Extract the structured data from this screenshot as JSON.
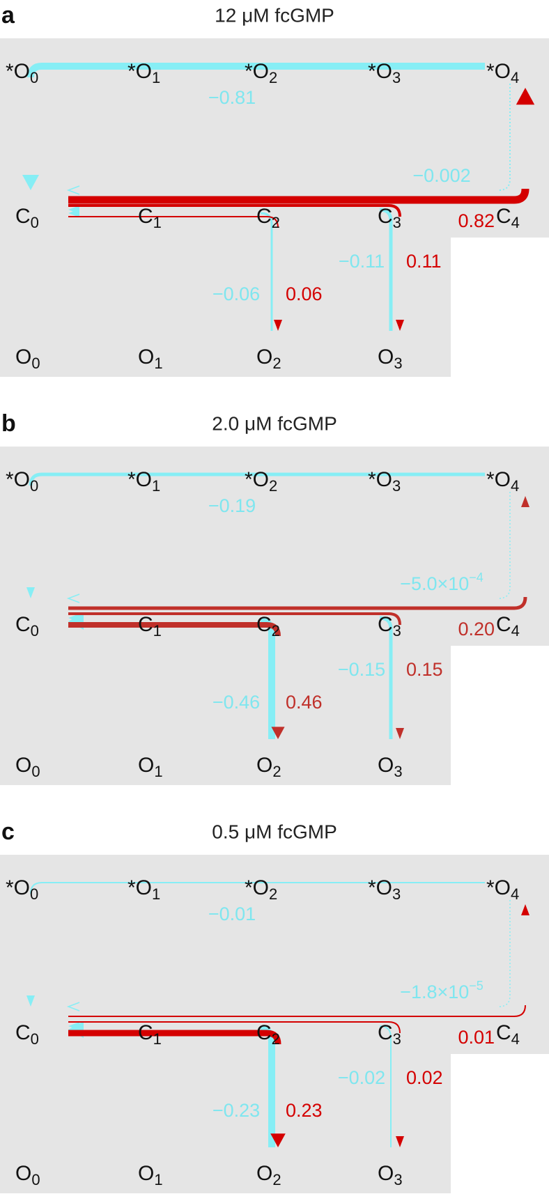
{
  "panels": [
    {
      "label": "a",
      "title": "12 μM fcGMP",
      "nodes": [
        {
          "main": "*O",
          "sub": "0"
        },
        {
          "main": "*O",
          "sub": "1"
        },
        {
          "main": "*O",
          "sub": "2"
        },
        {
          "main": "*O",
          "sub": "3"
        },
        {
          "main": "*O",
          "sub": "4"
        },
        {
          "main": "C",
          "sub": "0"
        },
        {
          "main": "C",
          "sub": "1"
        },
        {
          "main": "C",
          "sub": "2"
        },
        {
          "main": "C",
          "sub": "3"
        },
        {
          "main": "C",
          "sub": "4"
        },
        {
          "main": "O",
          "sub": "0"
        },
        {
          "main": "O",
          "sub": "1"
        },
        {
          "main": "O",
          "sub": "2"
        },
        {
          "main": "O",
          "sub": "3"
        }
      ],
      "fluxes": {
        "top": "−0.81",
        "c4_back": "−0.002",
        "c4": "0.82",
        "o3_back": "−0.11",
        "o3": "0.11",
        "o2_back": "−0.06",
        "o2": "0.06"
      }
    },
    {
      "label": "b",
      "title": "2.0 μM fcGMP",
      "nodes": [
        {
          "main": "*O",
          "sub": "0"
        },
        {
          "main": "*O",
          "sub": "1"
        },
        {
          "main": "*O",
          "sub": "2"
        },
        {
          "main": "*O",
          "sub": "3"
        },
        {
          "main": "*O",
          "sub": "4"
        },
        {
          "main": "C",
          "sub": "0"
        },
        {
          "main": "C",
          "sub": "1"
        },
        {
          "main": "C",
          "sub": "2"
        },
        {
          "main": "C",
          "sub": "3"
        },
        {
          "main": "C",
          "sub": "4"
        },
        {
          "main": "O",
          "sub": "0"
        },
        {
          "main": "O",
          "sub": "1"
        },
        {
          "main": "O",
          "sub": "2"
        },
        {
          "main": "O",
          "sub": "3"
        }
      ],
      "fluxes": {
        "top": "−0.19",
        "c4_back": {
          "main": "−5.0×10",
          "sup": "−4"
        },
        "c4": "0.20",
        "o3_back": "−0.15",
        "o3": "0.15",
        "o2_back": "−0.46",
        "o2": "0.46"
      }
    },
    {
      "label": "c",
      "title": "0.5 μM fcGMP",
      "nodes": [
        {
          "main": "*O",
          "sub": "0"
        },
        {
          "main": "*O",
          "sub": "1"
        },
        {
          "main": "*O",
          "sub": "2"
        },
        {
          "main": "*O",
          "sub": "3"
        },
        {
          "main": "*O",
          "sub": "4"
        },
        {
          "main": "C",
          "sub": "0"
        },
        {
          "main": "C",
          "sub": "1"
        },
        {
          "main": "C",
          "sub": "2"
        },
        {
          "main": "C",
          "sub": "3"
        },
        {
          "main": "C",
          "sub": "4"
        },
        {
          "main": "O",
          "sub": "0"
        },
        {
          "main": "O",
          "sub": "1"
        },
        {
          "main": "O",
          "sub": "2"
        },
        {
          "main": "O",
          "sub": "3"
        }
      ],
      "fluxes": {
        "top": "−0.01",
        "c4_back": {
          "main": "−1.8×10",
          "sup": "−5"
        },
        "c4": "0.01",
        "o3_back": "−0.02",
        "o3": "0.02",
        "o2_back": "−0.23",
        "o2": "0.23"
      }
    }
  ]
}
